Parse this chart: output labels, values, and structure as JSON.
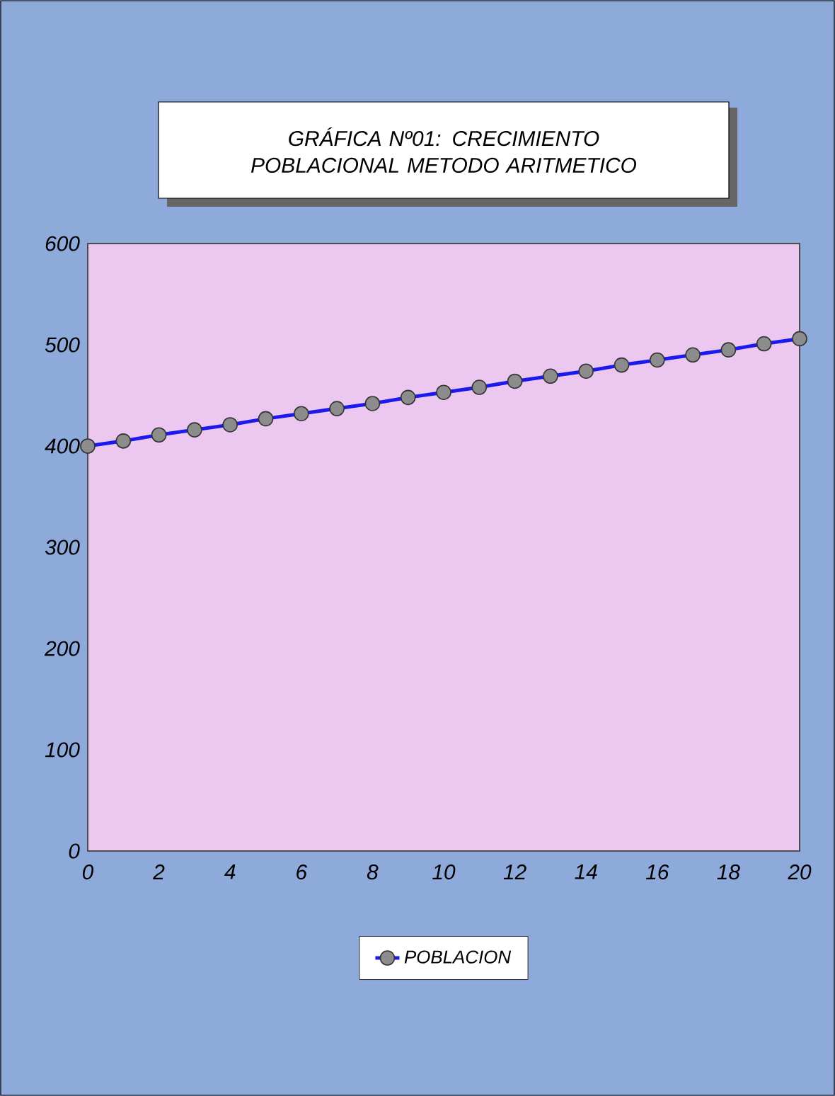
{
  "chart_data": {
    "type": "line",
    "title": "GRÁFICA Nº01:  CRECIMIENTO POBLACIONAL METODO ARITMETICO",
    "x": [
      0,
      1,
      2,
      3,
      4,
      5,
      6,
      7,
      8,
      9,
      10,
      11,
      12,
      13,
      14,
      15,
      16,
      17,
      18,
      19,
      20
    ],
    "series": [
      {
        "name": "POBLACION",
        "color": "#1a1aee",
        "values": [
          400,
          405,
          411,
          416,
          421,
          427,
          432,
          437,
          442,
          448,
          453,
          458,
          464,
          469,
          474,
          480,
          485,
          490,
          495,
          501,
          506
        ]
      }
    ],
    "xlim": [
      0,
      20
    ],
    "xticks": [
      0,
      2,
      4,
      6,
      8,
      10,
      12,
      14,
      16,
      18,
      20
    ],
    "ylim": [
      0,
      600
    ],
    "yticks": [
      0,
      100,
      200,
      300,
      400,
      500,
      600
    ],
    "legend": "bottom",
    "marker": "circle",
    "line_style": "solid",
    "grid": false
  }
}
